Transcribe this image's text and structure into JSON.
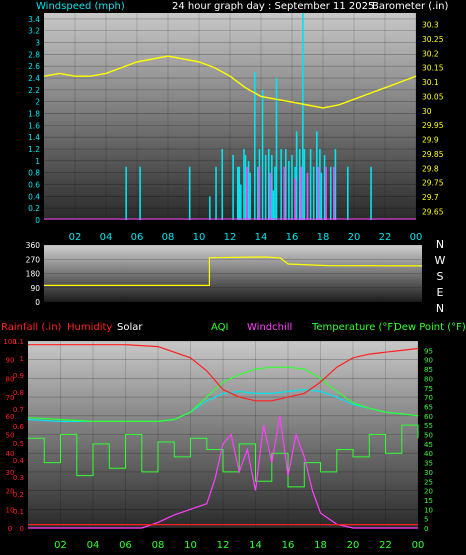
{
  "colors": {
    "cyan": "#00e5ee",
    "yellow": "#ffff00",
    "red": "#ff2020",
    "magenta": "#ff40ff",
    "green": "#30ff30",
    "white": "#ffffff",
    "bg": "#000000"
  },
  "top": {
    "left_title": "Windspeed (mph)",
    "center_title": "24 hour graph day : September 11 2025",
    "right_title": "Barometer (.in)"
  },
  "mid": {
    "compass": [
      "N",
      "W",
      "S",
      "E",
      "N"
    ]
  },
  "bottom": {
    "labels": {
      "rain": "Rainfall (.in)",
      "humidity": "Humidity",
      "solar": "Solar",
      "aqi": "AQI",
      "windchill": "Windchill",
      "temp": "Temperature (°F)",
      "dew": "Dew Point (°F)"
    }
  },
  "chart_data": [
    {
      "type": "bar",
      "name": "wind-barometer",
      "x_ticks": [
        "02",
        "04",
        "06",
        "08",
        "10",
        "12",
        "14",
        "16",
        "18",
        "20",
        "22",
        "00"
      ],
      "left_axis": {
        "label": "Windspeed (mph)",
        "range": [
          0,
          3.5
        ],
        "ticks": [
          "0",
          "0.2",
          "0.4",
          "0.6",
          "0.8",
          "1",
          "1.2",
          "1.4",
          "1.6",
          "1.8",
          "2",
          "2.2",
          "2.4",
          "2.6",
          "2.8",
          "3",
          "3.2",
          "3.4"
        ]
      },
      "right_axis": {
        "label": "Barometer (.in)",
        "range": [
          29.62,
          30.34
        ],
        "ticks": [
          "29.65",
          "29.7",
          "29.75",
          "29.8",
          "29.85",
          "29.9",
          "29.95",
          "30",
          "30.05",
          "30.1",
          "30.15",
          "30.2",
          "30.25",
          "30.3"
        ]
      },
      "barometer": [
        [
          0,
          30.12
        ],
        [
          1,
          30.13
        ],
        [
          2,
          30.12
        ],
        [
          3,
          30.12
        ],
        [
          4,
          30.13
        ],
        [
          5,
          30.15
        ],
        [
          6,
          30.17
        ],
        [
          7,
          30.18
        ],
        [
          8,
          30.19
        ],
        [
          9,
          30.18
        ],
        [
          10,
          30.17
        ],
        [
          11,
          30.15
        ],
        [
          12,
          30.12
        ],
        [
          13,
          30.08
        ],
        [
          14,
          30.05
        ],
        [
          15,
          30.04
        ],
        [
          16,
          30.03
        ],
        [
          17,
          30.02
        ],
        [
          18,
          30.01
        ],
        [
          19,
          30.02
        ],
        [
          20,
          30.04
        ],
        [
          21,
          30.06
        ],
        [
          22,
          30.08
        ],
        [
          23,
          30.1
        ],
        [
          24,
          30.12
        ]
      ],
      "wind_speed_bars": [
        [
          5.3,
          0.9
        ],
        [
          6.2,
          0.9
        ],
        [
          9.4,
          0.9
        ],
        [
          10.7,
          0.4
        ],
        [
          11.1,
          0.9
        ],
        [
          11.5,
          1.2
        ],
        [
          12.2,
          1.1
        ],
        [
          12.5,
          0.9
        ],
        [
          12.6,
          0.9
        ],
        [
          12.7,
          0.6
        ],
        [
          12.9,
          1.2
        ],
        [
          13.0,
          1.1
        ],
        [
          13.2,
          1.0
        ],
        [
          13.3,
          0.8
        ],
        [
          13.6,
          2.5
        ],
        [
          13.8,
          0.9
        ],
        [
          13.9,
          1.2
        ],
        [
          14.1,
          2.2
        ],
        [
          14.3,
          1.1
        ],
        [
          14.5,
          1.2
        ],
        [
          14.7,
          1.1
        ],
        [
          14.8,
          0.5
        ],
        [
          14.9,
          0.9
        ],
        [
          15.0,
          2.4
        ],
        [
          15.3,
          1.2
        ],
        [
          15.5,
          0.8
        ],
        [
          15.6,
          1.2
        ],
        [
          15.8,
          1.0
        ],
        [
          16.0,
          1.1
        ],
        [
          16.2,
          0.9
        ],
        [
          16.3,
          1.5
        ],
        [
          16.5,
          1.2
        ],
        [
          16.7,
          3.5
        ],
        [
          16.8,
          1.2
        ],
        [
          17.0,
          0.8
        ],
        [
          17.2,
          1.2
        ],
        [
          17.4,
          0.9
        ],
        [
          17.6,
          1.5
        ],
        [
          17.8,
          1.2
        ],
        [
          17.9,
          0.8
        ],
        [
          18.1,
          1.1
        ],
        [
          18.5,
          0.9
        ],
        [
          18.8,
          1.2
        ],
        [
          19.6,
          0.9
        ],
        [
          21.1,
          0.9
        ]
      ],
      "wind_gust_bars": [
        [
          13.1,
          0.9
        ],
        [
          13.9,
          0.9
        ],
        [
          14.6,
          0.8
        ],
        [
          15.5,
          0.9
        ],
        [
          16.2,
          0.7
        ],
        [
          16.6,
          0.9
        ],
        [
          17.0,
          0.8
        ],
        [
          17.7,
          0.9
        ],
        [
          18.2,
          0.9
        ],
        [
          18.7,
          0.9
        ]
      ]
    },
    {
      "type": "line",
      "name": "wind-direction",
      "y_range": [
        0,
        360
      ],
      "ticks": [
        "0",
        "90",
        "180",
        "270",
        "360"
      ],
      "direction_deg": [
        [
          0,
          105
        ],
        [
          10.5,
          105
        ],
        [
          10.5,
          280
        ],
        [
          14,
          284
        ],
        [
          15,
          278
        ],
        [
          15.5,
          240
        ],
        [
          18,
          230
        ],
        [
          24,
          228
        ]
      ]
    },
    {
      "type": "line",
      "name": "weather",
      "left_axis": {
        "range": [
          0,
          100
        ],
        "ticks": [
          "0",
          "10",
          "20",
          "30",
          "40",
          "50",
          "60",
          "70",
          "80",
          "90",
          "100"
        ]
      },
      "rain_axis": {
        "range": [
          0,
          1.1
        ],
        "ticks": [
          "0",
          "0.1",
          "0.2",
          "0.3",
          "0.4",
          "0.5",
          "0.6",
          "0.7",
          "0.8",
          "0.9",
          "1",
          "1.1"
        ]
      },
      "right_axis": {
        "range": [
          0,
          100
        ],
        "ticks": [
          "0",
          "5",
          "10",
          "15",
          "20",
          "25",
          "30",
          "35",
          "40",
          "45",
          "50",
          "55",
          "60",
          "65",
          "70",
          "75",
          "80",
          "85",
          "90",
          "95"
        ]
      },
      "humidity": [
        [
          0,
          98
        ],
        [
          2,
          98
        ],
        [
          4,
          98
        ],
        [
          6,
          98
        ],
        [
          8,
          97
        ],
        [
          10,
          91
        ],
        [
          11,
          84
        ],
        [
          12,
          74
        ],
        [
          13,
          70
        ],
        [
          14,
          68
        ],
        [
          15,
          68
        ],
        [
          16,
          70
        ],
        [
          17,
          72
        ],
        [
          18,
          78
        ],
        [
          19,
          86
        ],
        [
          20,
          91
        ],
        [
          21,
          93
        ],
        [
          22,
          94
        ],
        [
          23,
          95
        ],
        [
          24,
          96
        ]
      ],
      "temperature": [
        [
          0,
          59
        ],
        [
          2,
          58
        ],
        [
          4,
          57
        ],
        [
          6,
          57
        ],
        [
          8,
          57
        ],
        [
          9,
          58
        ],
        [
          10,
          62
        ],
        [
          11,
          70
        ],
        [
          12,
          78
        ],
        [
          13,
          82
        ],
        [
          14,
          85
        ],
        [
          15,
          86
        ],
        [
          16,
          86
        ],
        [
          17,
          85
        ],
        [
          18,
          80
        ],
        [
          19,
          73
        ],
        [
          20,
          67
        ],
        [
          21,
          64
        ],
        [
          22,
          62
        ],
        [
          23,
          61
        ],
        [
          24,
          60
        ]
      ],
      "dew_point": [
        [
          0,
          58
        ],
        [
          2,
          57
        ],
        [
          4,
          57
        ],
        [
          6,
          57
        ],
        [
          8,
          57
        ],
        [
          9,
          58
        ],
        [
          10,
          62
        ],
        [
          11,
          68
        ],
        [
          12,
          72
        ],
        [
          13,
          73
        ],
        [
          14,
          72
        ],
        [
          15,
          72
        ],
        [
          16,
          73
        ],
        [
          17,
          74
        ],
        [
          18,
          73
        ],
        [
          19,
          70
        ],
        [
          20,
          66
        ],
        [
          21,
          64
        ],
        [
          22,
          62
        ],
        [
          23,
          61
        ],
        [
          24,
          60
        ]
      ],
      "solar": [
        [
          0,
          0
        ],
        [
          7,
          0
        ],
        [
          8,
          3
        ],
        [
          9,
          7
        ],
        [
          10,
          10
        ],
        [
          11,
          13
        ],
        [
          11.5,
          26
        ],
        [
          12,
          45
        ],
        [
          12.5,
          50
        ],
        [
          13,
          30
        ],
        [
          13.5,
          42
        ],
        [
          14,
          20
        ],
        [
          14.5,
          55
        ],
        [
          15,
          35
        ],
        [
          15.5,
          60
        ],
        [
          16,
          28
        ],
        [
          16.5,
          50
        ],
        [
          17,
          38
        ],
        [
          17.5,
          20
        ],
        [
          18,
          8
        ],
        [
          19,
          2
        ],
        [
          20,
          0
        ],
        [
          24,
          0
        ]
      ],
      "aqi": [
        [
          0,
          48
        ],
        [
          1,
          35
        ],
        [
          2,
          50
        ],
        [
          3,
          28
        ],
        [
          4,
          45
        ],
        [
          5,
          32
        ],
        [
          6,
          50
        ],
        [
          7,
          30
        ],
        [
          8,
          46
        ],
        [
          9,
          38
        ],
        [
          10,
          48
        ],
        [
          11,
          42
        ],
        [
          12,
          30
        ],
        [
          13,
          45
        ],
        [
          14,
          25
        ],
        [
          15,
          40
        ],
        [
          16,
          22
        ],
        [
          17,
          35
        ],
        [
          18,
          30
        ],
        [
          19,
          42
        ],
        [
          20,
          38
        ],
        [
          21,
          50
        ],
        [
          22,
          40
        ],
        [
          23,
          55
        ],
        [
          24,
          48
        ]
      ],
      "rain_total": [
        [
          0,
          0.02
        ],
        [
          24,
          0.02
        ]
      ]
    }
  ]
}
